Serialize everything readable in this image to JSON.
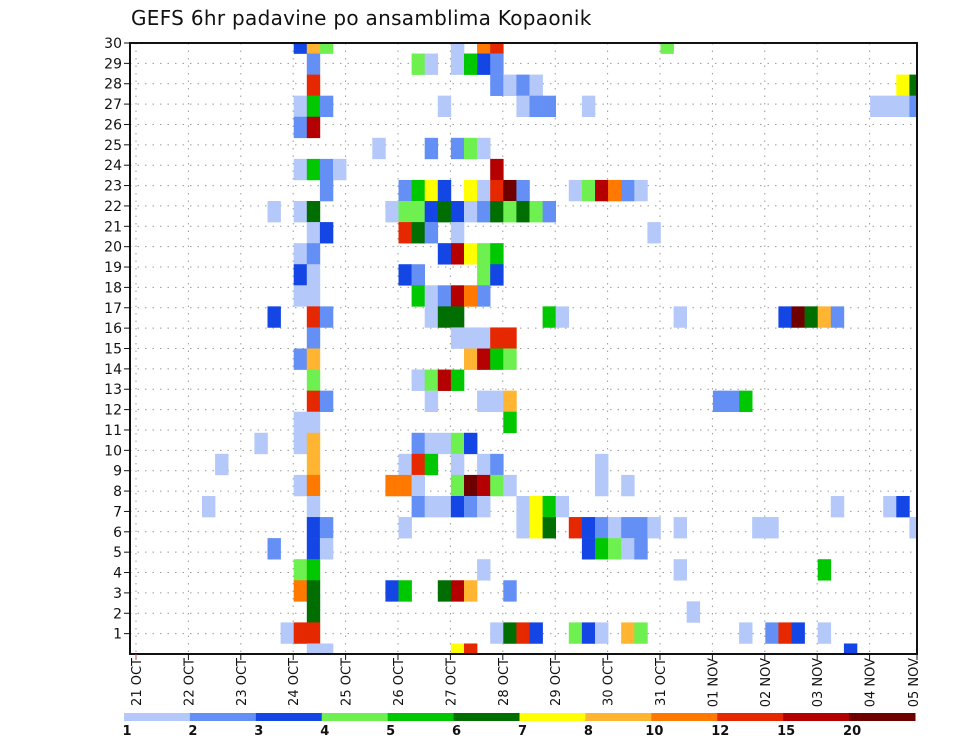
{
  "chart_data": {
    "type": "heatmap",
    "title": "GEFS 6hr padavine po ansamblima Kopaonik",
    "x_axis": {
      "unit": "6-hour step index from 21 OCT",
      "step_hours": 6,
      "tick_labels": [
        "21 OCT",
        "22 OCT",
        "23 OCT",
        "24 OCT",
        "25 OCT",
        "26 OCT",
        "27 OCT",
        "28 OCT",
        "29 OCT",
        "30 OCT",
        "31 OCT",
        "01 NOV",
        "02 NOV",
        "03 NOV",
        "04 NOV",
        "05 NOV"
      ]
    },
    "y_axis": {
      "unit": "ensemble member",
      "range": [
        0,
        30
      ],
      "tick_labels": [
        "1",
        "2",
        "3",
        "4",
        "5",
        "6",
        "7",
        "8",
        "9",
        "10",
        "11",
        "12",
        "13",
        "14",
        "15",
        "16",
        "17",
        "18",
        "19",
        "20",
        "21",
        "22",
        "23",
        "24",
        "25",
        "26",
        "27",
        "28",
        "29",
        "30"
      ],
      "tick_values": [
        1,
        2,
        3,
        4,
        5,
        6,
        7,
        8,
        9,
        10,
        11,
        12,
        13,
        14,
        15,
        16,
        17,
        18,
        19,
        20,
        21,
        22,
        23,
        24,
        25,
        26,
        27,
        28,
        29,
        30
      ]
    },
    "grid": true,
    "colorbar": {
      "placement": "bottom",
      "labels": [
        "1",
        "2",
        "3",
        "4",
        "5",
        "6",
        "7",
        "8",
        "10",
        "12",
        "15",
        "20"
      ],
      "colors": [
        "#b4c8fa",
        "#6490f5",
        "#1446e6",
        "#6ef050",
        "#00c800",
        "#006e00",
        "#ffff00",
        "#ffb432",
        "#ff7800",
        "#e62800",
        "#b40000",
        "#6e0000"
      ]
    },
    "cells_format": "[time_step, member, color_level]",
    "cells": [
      [
        12,
        29,
        2
      ],
      [
        13,
        29,
        7
      ],
      [
        14,
        29,
        3
      ],
      [
        24,
        29,
        0
      ],
      [
        26,
        29,
        8
      ],
      [
        27,
        29,
        9
      ],
      [
        40,
        29,
        3
      ],
      [
        13,
        28,
        1
      ],
      [
        21,
        28,
        3
      ],
      [
        22,
        28,
        0
      ],
      [
        24,
        28,
        0
      ],
      [
        25,
        28,
        4
      ],
      [
        26,
        28,
        2
      ],
      [
        27,
        28,
        1
      ],
      [
        13,
        27,
        9
      ],
      [
        27,
        27,
        1
      ],
      [
        28,
        27,
        0
      ],
      [
        29,
        27,
        1
      ],
      [
        30,
        27,
        0
      ],
      [
        58,
        27,
        6
      ],
      [
        59,
        27,
        5
      ],
      [
        12,
        26,
        0
      ],
      [
        13,
        26,
        4
      ],
      [
        14,
        26,
        1
      ],
      [
        23,
        26,
        0
      ],
      [
        29,
        26,
        0
      ],
      [
        30,
        26,
        1
      ],
      [
        31,
        26,
        1
      ],
      [
        34,
        26,
        0
      ],
      [
        56,
        26,
        0
      ],
      [
        57,
        26,
        0
      ],
      [
        58,
        26,
        0
      ],
      [
        59,
        26,
        1
      ],
      [
        12,
        25,
        1
      ],
      [
        13,
        25,
        10
      ],
      [
        18,
        24,
        0
      ],
      [
        22,
        24,
        1
      ],
      [
        24,
        24,
        1
      ],
      [
        25,
        24,
        3
      ],
      [
        26,
        24,
        0
      ],
      [
        12,
        23,
        0
      ],
      [
        13,
        23,
        4
      ],
      [
        14,
        23,
        1
      ],
      [
        15,
        23,
        0
      ],
      [
        27,
        23,
        10
      ],
      [
        14,
        22,
        1
      ],
      [
        20,
        22,
        1
      ],
      [
        21,
        22,
        4
      ],
      [
        22,
        22,
        6
      ],
      [
        23,
        22,
        2
      ],
      [
        25,
        22,
        6
      ],
      [
        26,
        22,
        0
      ],
      [
        27,
        22,
        9
      ],
      [
        28,
        22,
        11
      ],
      [
        29,
        22,
        1
      ],
      [
        33,
        22,
        0
      ],
      [
        34,
        22,
        3
      ],
      [
        35,
        22,
        10
      ],
      [
        36,
        22,
        8
      ],
      [
        37,
        22,
        1
      ],
      [
        38,
        22,
        0
      ],
      [
        10,
        21,
        0
      ],
      [
        12,
        21,
        0
      ],
      [
        13,
        21,
        5
      ],
      [
        19,
        21,
        0
      ],
      [
        20,
        21,
        3
      ],
      [
        21,
        21,
        3
      ],
      [
        22,
        21,
        2
      ],
      [
        23,
        21,
        5
      ],
      [
        24,
        21,
        2
      ],
      [
        25,
        21,
        0
      ],
      [
        26,
        21,
        1
      ],
      [
        27,
        21,
        5
      ],
      [
        28,
        21,
        3
      ],
      [
        29,
        21,
        5
      ],
      [
        30,
        21,
        3
      ],
      [
        31,
        21,
        1
      ],
      [
        13,
        20,
        0
      ],
      [
        14,
        20,
        2
      ],
      [
        20,
        20,
        9
      ],
      [
        21,
        20,
        5
      ],
      [
        22,
        20,
        1
      ],
      [
        24,
        20,
        0
      ],
      [
        39,
        20,
        0
      ],
      [
        12,
        19,
        0
      ],
      [
        13,
        19,
        1
      ],
      [
        23,
        19,
        2
      ],
      [
        24,
        19,
        10
      ],
      [
        25,
        19,
        6
      ],
      [
        26,
        19,
        3
      ],
      [
        27,
        19,
        4
      ],
      [
        12,
        18,
        2
      ],
      [
        13,
        18,
        0
      ],
      [
        20,
        18,
        2
      ],
      [
        21,
        18,
        1
      ],
      [
        26,
        18,
        3
      ],
      [
        27,
        18,
        2
      ],
      [
        12,
        17,
        0
      ],
      [
        13,
        17,
        0
      ],
      [
        21,
        17,
        4
      ],
      [
        22,
        17,
        0
      ],
      [
        23,
        17,
        1
      ],
      [
        24,
        17,
        10
      ],
      [
        25,
        17,
        8
      ],
      [
        26,
        17,
        1
      ],
      [
        10,
        16,
        2
      ],
      [
        13,
        16,
        9
      ],
      [
        14,
        16,
        1
      ],
      [
        22,
        16,
        0
      ],
      [
        23,
        16,
        5
      ],
      [
        24,
        16,
        5
      ],
      [
        31,
        16,
        4
      ],
      [
        32,
        16,
        0
      ],
      [
        41,
        16,
        0
      ],
      [
        49,
        16,
        2
      ],
      [
        50,
        16,
        11
      ],
      [
        51,
        16,
        5
      ],
      [
        52,
        16,
        7
      ],
      [
        53,
        16,
        1
      ],
      [
        13,
        15,
        1
      ],
      [
        24,
        15,
        0
      ],
      [
        25,
        15,
        0
      ],
      [
        26,
        15,
        0
      ],
      [
        27,
        15,
        9
      ],
      [
        28,
        15,
        9
      ],
      [
        12,
        14,
        1
      ],
      [
        13,
        14,
        7
      ],
      [
        25,
        14,
        7
      ],
      [
        26,
        14,
        10
      ],
      [
        27,
        14,
        4
      ],
      [
        28,
        14,
        3
      ],
      [
        13,
        13,
        3
      ],
      [
        21,
        13,
        0
      ],
      [
        22,
        13,
        3
      ],
      [
        23,
        13,
        10
      ],
      [
        24,
        13,
        4
      ],
      [
        13,
        12,
        9
      ],
      [
        14,
        12,
        1
      ],
      [
        22,
        12,
        0
      ],
      [
        26,
        12,
        0
      ],
      [
        27,
        12,
        0
      ],
      [
        28,
        12,
        7
      ],
      [
        44,
        12,
        1
      ],
      [
        45,
        12,
        1
      ],
      [
        46,
        12,
        4
      ],
      [
        12,
        11,
        0
      ],
      [
        13,
        11,
        0
      ],
      [
        28,
        11,
        4
      ],
      [
        9,
        10,
        0
      ],
      [
        12,
        10,
        0
      ],
      [
        13,
        10,
        7
      ],
      [
        21,
        10,
        1
      ],
      [
        22,
        10,
        0
      ],
      [
        23,
        10,
        0
      ],
      [
        24,
        10,
        3
      ],
      [
        25,
        10,
        2
      ],
      [
        6,
        9,
        0
      ],
      [
        13,
        9,
        7
      ],
      [
        20,
        9,
        0
      ],
      [
        21,
        9,
        9
      ],
      [
        22,
        9,
        4
      ],
      [
        24,
        9,
        0
      ],
      [
        26,
        9,
        0
      ],
      [
        27,
        9,
        1
      ],
      [
        35,
        9,
        0
      ],
      [
        12,
        8,
        0
      ],
      [
        13,
        8,
        8
      ],
      [
        19,
        8,
        8
      ],
      [
        20,
        8,
        8
      ],
      [
        21,
        8,
        0
      ],
      [
        24,
        8,
        3
      ],
      [
        25,
        8,
        11
      ],
      [
        26,
        8,
        10
      ],
      [
        27,
        8,
        3
      ],
      [
        28,
        8,
        0
      ],
      [
        35,
        8,
        0
      ],
      [
        37,
        8,
        0
      ],
      [
        5,
        7,
        0
      ],
      [
        13,
        7,
        0
      ],
      [
        21,
        7,
        1
      ],
      [
        22,
        7,
        0
      ],
      [
        23,
        7,
        0
      ],
      [
        24,
        7,
        2
      ],
      [
        25,
        7,
        1
      ],
      [
        26,
        7,
        0
      ],
      [
        29,
        7,
        0
      ],
      [
        30,
        7,
        6
      ],
      [
        31,
        7,
        4
      ],
      [
        32,
        7,
        0
      ],
      [
        53,
        7,
        0
      ],
      [
        57,
        7,
        0
      ],
      [
        58,
        7,
        2
      ],
      [
        13,
        6,
        2
      ],
      [
        14,
        6,
        1
      ],
      [
        20,
        6,
        0
      ],
      [
        29,
        6,
        0
      ],
      [
        30,
        6,
        6
      ],
      [
        31,
        6,
        5
      ],
      [
        33,
        6,
        9
      ],
      [
        34,
        6,
        2
      ],
      [
        35,
        6,
        1
      ],
      [
        36,
        6,
        0
      ],
      [
        37,
        6,
        1
      ],
      [
        38,
        6,
        1
      ],
      [
        39,
        6,
        0
      ],
      [
        41,
        6,
        0
      ],
      [
        47,
        6,
        0
      ],
      [
        48,
        6,
        0
      ],
      [
        59,
        6,
        0
      ],
      [
        10,
        5,
        1
      ],
      [
        13,
        5,
        2
      ],
      [
        14,
        5,
        0
      ],
      [
        34,
        5,
        2
      ],
      [
        35,
        5,
        4
      ],
      [
        36,
        5,
        3
      ],
      [
        37,
        5,
        0
      ],
      [
        38,
        5,
        1
      ],
      [
        12,
        4,
        3
      ],
      [
        13,
        4,
        4
      ],
      [
        26,
        4,
        0
      ],
      [
        41,
        4,
        0
      ],
      [
        52,
        4,
        4
      ],
      [
        12,
        3,
        8
      ],
      [
        13,
        3,
        5
      ],
      [
        19,
        3,
        2
      ],
      [
        20,
        3,
        4
      ],
      [
        23,
        3,
        5
      ],
      [
        24,
        3,
        10
      ],
      [
        25,
        3,
        7
      ],
      [
        28,
        3,
        1
      ],
      [
        13,
        2,
        5
      ],
      [
        42,
        2,
        0
      ],
      [
        11,
        1,
        0
      ],
      [
        12,
        1,
        9
      ],
      [
        13,
        1,
        9
      ],
      [
        27,
        1,
        0
      ],
      [
        28,
        1,
        5
      ],
      [
        29,
        1,
        9
      ],
      [
        30,
        1,
        2
      ],
      [
        33,
        1,
        3
      ],
      [
        34,
        1,
        2
      ],
      [
        35,
        1,
        0
      ],
      [
        37,
        1,
        7
      ],
      [
        38,
        1,
        3
      ],
      [
        46,
        1,
        0
      ],
      [
        48,
        1,
        1
      ],
      [
        49,
        1,
        9
      ],
      [
        50,
        1,
        2
      ],
      [
        52,
        1,
        0
      ],
      [
        13,
        0,
        0
      ],
      [
        14,
        0,
        0
      ],
      [
        24,
        0,
        6
      ],
      [
        25,
        0,
        9
      ],
      [
        54,
        0,
        2
      ]
    ]
  }
}
